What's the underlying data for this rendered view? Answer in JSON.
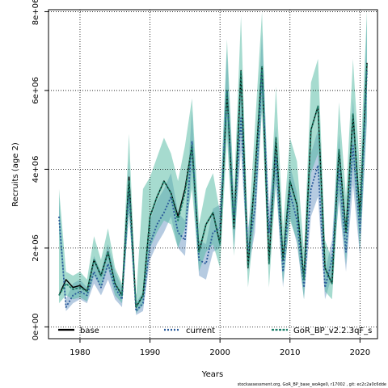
{
  "chart_data": {
    "type": "line",
    "title": "",
    "xlabel": "Years",
    "ylabel": "Recruits (age 2)",
    "xlim": [
      1975.5,
      2022.5
    ],
    "ylim": [
      -300000,
      8050000
    ],
    "x_ticks": [
      1980,
      1990,
      2000,
      2010,
      2020
    ],
    "y_ticks": [
      {
        "value": 0,
        "label": "0e+00"
      },
      {
        "value": 2000000,
        "label": "2e+06"
      },
      {
        "value": 4000000,
        "label": "4e+06"
      },
      {
        "value": 6000000,
        "label": "6e+06"
      },
      {
        "value": 8000000,
        "label": "8e+06"
      }
    ],
    "grid": true,
    "legend_placement": "bottom",
    "x": [
      1977,
      1978,
      1979,
      1980,
      1981,
      1982,
      1983,
      1984,
      1985,
      1986,
      1987,
      1988,
      1989,
      1990,
      1991,
      1992,
      1993,
      1994,
      1995,
      1996,
      1997,
      1998,
      1999,
      2000,
      2001,
      2002,
      2003,
      2004,
      2005,
      2006,
      2007,
      2008,
      2009,
      2010,
      2011,
      2012,
      2013,
      2014,
      2015,
      2016,
      2017,
      2018,
      2019,
      2020,
      2021
    ],
    "series": [
      {
        "name": "base",
        "color": "#000000",
        "linestyle": "solid",
        "values": [
          800000,
          1200000,
          1000000,
          1050000,
          900000,
          1700000,
          1300000,
          1900000,
          1100000,
          800000,
          3800000,
          500000,
          800000,
          2800000,
          3300000,
          3700000,
          3400000,
          2800000,
          3500000,
          4600000,
          1900000,
          2600000,
          2900000,
          2100000,
          6000000,
          2500000,
          6500000,
          1500000,
          3900000,
          6600000,
          1600000,
          4800000,
          1700000,
          3700000,
          3100000,
          1200000,
          5000000,
          5600000,
          1500000,
          1100000,
          4500000,
          2400000,
          5400000,
          2800000,
          6700000
        ]
      },
      {
        "name": "current",
        "color": "#2a5a9a",
        "linestyle": "dotted",
        "values": [
          2800000,
          500000,
          800000,
          900000,
          800000,
          1400000,
          1000000,
          1600000,
          1000000,
          700000,
          3500000,
          400000,
          600000,
          2100000,
          2600000,
          2900000,
          3300000,
          2400000,
          2200000,
          4700000,
          1700000,
          1600000,
          2400000,
          2500000,
          6000000,
          2600000,
          5300000,
          1900000,
          3000000,
          6500000,
          2400000,
          4300000,
          1400000,
          3400000,
          2700000,
          1000000,
          3500000,
          4100000,
          1000000,
          1700000,
          4000000,
          1900000,
          4600000,
          2400000,
          6500000
        ]
      },
      {
        "name": "GoR_BP_v2.2.3qF_s",
        "color": "#1f7f6a",
        "linestyle": "dashed",
        "values": [
          800000,
          1100000,
          950000,
          1000000,
          900000,
          1700000,
          1300000,
          1900000,
          1100000,
          800000,
          3700000,
          500000,
          800000,
          2800000,
          3300000,
          3700000,
          3400000,
          2700000,
          3400000,
          4600000,
          1900000,
          2600000,
          2900000,
          2100000,
          6000000,
          2500000,
          6500000,
          1500000,
          3900000,
          6600000,
          1600000,
          4800000,
          1700000,
          3700000,
          3100000,
          1200000,
          5000000,
          5600000,
          1500000,
          1100000,
          4500000,
          2400000,
          5400000,
          2800000,
          6700000
        ]
      }
    ],
    "bands": [
      {
        "name": "current",
        "color": "#7aa0c8",
        "lower": [
          2400000,
          400000,
          600000,
          700000,
          600000,
          1100000,
          800000,
          1200000,
          700000,
          500000,
          2900000,
          300000,
          400000,
          1700000,
          2100000,
          2400000,
          2800000,
          2000000,
          1800000,
          4000000,
          1300000,
          1200000,
          1900000,
          2000000,
          5100000,
          2000000,
          4500000,
          1400000,
          2400000,
          5600000,
          1900000,
          3600000,
          1000000,
          2800000,
          2100000,
          700000,
          2800000,
          3300000,
          700000,
          1300000,
          3200000,
          1400000,
          3600000,
          1800000,
          5200000
        ],
        "upper": [
          3300000,
          700000,
          1100000,
          1200000,
          1000000,
          1800000,
          1400000,
          2100000,
          1400000,
          1000000,
          4200000,
          600000,
          900000,
          2700000,
          3200000,
          3500000,
          3900000,
          2900000,
          2700000,
          5500000,
          2200000,
          2100000,
          3000000,
          3100000,
          7000000,
          3200000,
          6200000,
          2500000,
          3700000,
          7500000,
          3000000,
          5100000,
          1900000,
          4100000,
          3400000,
          1400000,
          4400000,
          5000000,
          1400000,
          2200000,
          4900000,
          2500000,
          5800000,
          3100000,
          7800000
        ]
      },
      {
        "name": "GoR_BP_v2.2.3qF_s",
        "color": "#4db8a0",
        "lower": [
          600000,
          800000,
          700000,
          750000,
          650000,
          1300000,
          1000000,
          1500000,
          800000,
          600000,
          2900000,
          350000,
          550000,
          2000000,
          2400000,
          2700000,
          2600000,
          2000000,
          2500000,
          3500000,
          1400000,
          1900000,
          2100000,
          1500000,
          4800000,
          1800000,
          5100000,
          1000000,
          2800000,
          5500000,
          1000000,
          3700000,
          1100000,
          2700000,
          2200000,
          700000,
          3900000,
          4400000,
          900000,
          700000,
          3400000,
          1600000,
          4200000,
          1900000,
          5400000
        ],
        "upper": [
          3500000,
          1400000,
          1300000,
          1400000,
          1200000,
          2300000,
          1700000,
          2500000,
          1500000,
          1100000,
          4900000,
          700000,
          3500000,
          3800000,
          4300000,
          4800000,
          4400000,
          3700000,
          4600000,
          5800000,
          2600000,
          3500000,
          3900000,
          2900000,
          7300000,
          3400000,
          7900000,
          2200000,
          5100000,
          8000000,
          2300000,
          6100000,
          2500000,
          4800000,
          4200000,
          1900000,
          6200000,
          6800000,
          2200000,
          1700000,
          5700000,
          3300000,
          6800000,
          3900000,
          8050000
        ]
      }
    ],
    "legend": [
      "base",
      "current",
      "GoR_BP_v2.2.3qF_s"
    ],
    "footer": "stockassessment.org,  GoR_BP_base_woAge0, r17002 , git: ec2c2a0c6dde"
  }
}
